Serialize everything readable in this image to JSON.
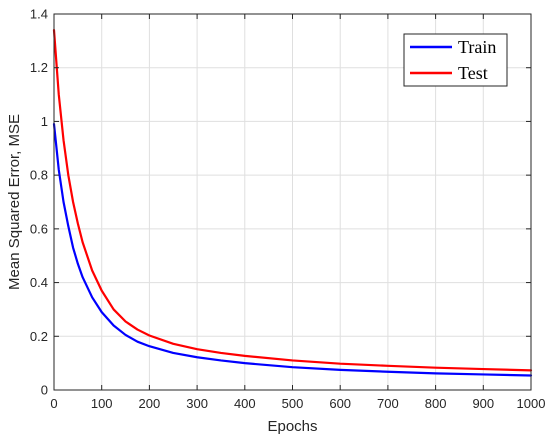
{
  "chart_data": {
    "type": "line",
    "title": "",
    "xlabel": "Epochs",
    "ylabel": "Mean Squared Error, MSE",
    "xlim": [
      0,
      1000
    ],
    "ylim": [
      0,
      1.4
    ],
    "x_ticks": [
      0,
      100,
      200,
      300,
      400,
      500,
      600,
      700,
      800,
      900,
      1000
    ],
    "y_ticks": [
      0,
      0.2,
      0.4,
      0.6,
      0.8,
      1,
      1.2,
      1.4
    ],
    "grid": true,
    "legend_position": "top-right",
    "series": [
      {
        "name": "Train",
        "color": "#0000ff",
        "x": [
          0,
          10,
          20,
          30,
          40,
          50,
          60,
          80,
          100,
          125,
          150,
          175,
          200,
          250,
          300,
          350,
          400,
          500,
          600,
          700,
          800,
          900,
          1000
        ],
        "y": [
          0.99,
          0.82,
          0.7,
          0.61,
          0.53,
          0.47,
          0.42,
          0.345,
          0.29,
          0.24,
          0.205,
          0.18,
          0.163,
          0.138,
          0.122,
          0.11,
          0.1,
          0.085,
          0.075,
          0.068,
          0.062,
          0.058,
          0.054
        ]
      },
      {
        "name": "Test",
        "color": "#ff0000",
        "x": [
          0,
          10,
          20,
          30,
          40,
          50,
          60,
          80,
          100,
          125,
          150,
          175,
          200,
          250,
          300,
          350,
          400,
          500,
          600,
          700,
          800,
          900,
          1000
        ],
        "y": [
          1.34,
          1.1,
          0.93,
          0.8,
          0.7,
          0.62,
          0.55,
          0.445,
          0.37,
          0.3,
          0.255,
          0.225,
          0.203,
          0.172,
          0.152,
          0.138,
          0.127,
          0.11,
          0.098,
          0.09,
          0.083,
          0.078,
          0.073
        ]
      }
    ]
  }
}
